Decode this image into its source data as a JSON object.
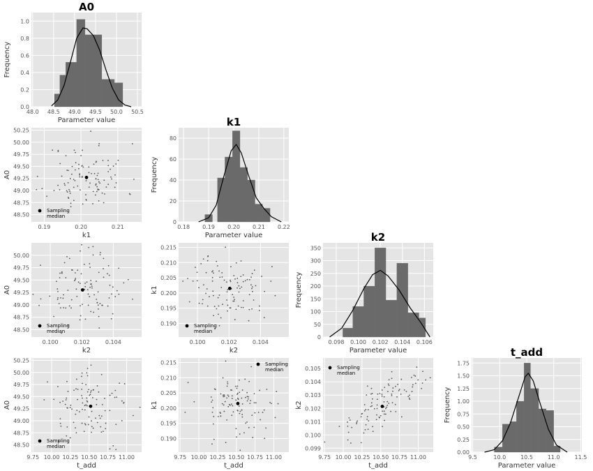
{
  "charts": {
    "A0": {
      "type": "histogram",
      "title": "A0",
      "xlabel": "Parameter value",
      "ylabel": "Frequency",
      "xlim": [
        47.97,
        50.6
      ],
      "ylim": [
        0,
        1.1
      ],
      "xticks": [
        "48.0",
        "48.5",
        "49.0",
        "49.5",
        "50.0",
        "50.5"
      ],
      "yticks": [
        "0.0",
        "0.2",
        "0.4",
        "0.6",
        "0.8",
        "1.0"
      ],
      "bins": [
        [
          48.52,
          48.65,
          0.15
        ],
        [
          48.65,
          48.79,
          0.37
        ],
        [
          48.79,
          49.05,
          0.52
        ],
        [
          49.05,
          49.25,
          1.02
        ],
        [
          49.25,
          49.45,
          0.84
        ],
        [
          49.45,
          49.65,
          0.84
        ],
        [
          49.65,
          49.95,
          0.32
        ],
        [
          49.95,
          50.15,
          0.28
        ]
      ],
      "kde": [
        [
          48.45,
          0.01
        ],
        [
          48.6,
          0.08
        ],
        [
          48.75,
          0.25
        ],
        [
          48.9,
          0.52
        ],
        [
          49.05,
          0.8
        ],
        [
          49.2,
          0.92
        ],
        [
          49.3,
          0.91
        ],
        [
          49.45,
          0.83
        ],
        [
          49.6,
          0.66
        ],
        [
          49.75,
          0.43
        ],
        [
          49.9,
          0.22
        ],
        [
          50.05,
          0.08
        ],
        [
          50.2,
          0.02
        ],
        [
          50.35,
          0.0
        ]
      ]
    },
    "k1": {
      "type": "histogram",
      "title": "k1",
      "xlabel": "Parameter value",
      "ylabel": "Frequency",
      "xlim": [
        0.178,
        0.222
      ],
      "ylim": [
        0,
        90
      ],
      "xticks": [
        "0.18",
        "0.19",
        "0.20",
        "0.21",
        "0.22"
      ],
      "yticks": [
        "0",
        "20",
        "40",
        "60",
        "80"
      ],
      "bins": [
        [
          0.1885,
          0.1915,
          7
        ],
        [
          0.1935,
          0.1965,
          42
        ],
        [
          0.1965,
          0.1995,
          62
        ],
        [
          0.1995,
          0.2025,
          87
        ],
        [
          0.2025,
          0.2055,
          52
        ],
        [
          0.2055,
          0.2085,
          40
        ],
        [
          0.2085,
          0.2115,
          17
        ],
        [
          0.2115,
          0.2145,
          13
        ]
      ],
      "kde": [
        [
          0.186,
          0.0
        ],
        [
          0.19,
          4
        ],
        [
          0.193,
          16
        ],
        [
          0.196,
          43
        ],
        [
          0.199,
          68
        ],
        [
          0.201,
          74
        ],
        [
          0.203,
          66
        ],
        [
          0.206,
          44
        ],
        [
          0.209,
          23
        ],
        [
          0.212,
          13
        ],
        [
          0.215,
          5
        ],
        [
          0.219,
          0.0
        ]
      ]
    },
    "k2": {
      "type": "histogram",
      "title": "k2",
      "xlabel": "Parameter value",
      "ylabel": "Frequency",
      "xlim": [
        0.0968,
        0.1068
      ],
      "ylim": [
        0,
        370
      ],
      "xticks": [
        "0.098",
        "0.100",
        "0.102",
        "0.104",
        "0.106"
      ],
      "yticks": [
        "0",
        "50",
        "100",
        "150",
        "200",
        "250",
        "300",
        "350"
      ],
      "bins": [
        [
          0.0986,
          0.0995,
          35
        ],
        [
          0.0995,
          0.1005,
          120
        ],
        [
          0.1005,
          0.1015,
          200
        ],
        [
          0.1015,
          0.1025,
          350
        ],
        [
          0.1025,
          0.1035,
          145
        ],
        [
          0.1035,
          0.1045,
          290
        ],
        [
          0.1045,
          0.1055,
          95
        ],
        [
          0.1055,
          0.1061,
          75
        ]
      ],
      "kde": [
        [
          0.0974,
          0.0
        ],
        [
          0.0985,
          35
        ],
        [
          0.0995,
          105
        ],
        [
          0.1005,
          190
        ],
        [
          0.1013,
          245
        ],
        [
          0.102,
          262
        ],
        [
          0.1027,
          240
        ],
        [
          0.1037,
          185
        ],
        [
          0.1047,
          115
        ],
        [
          0.1057,
          55
        ],
        [
          0.1065,
          0.0
        ]
      ]
    },
    "t_add": {
      "type": "histogram",
      "title": "t_add",
      "xlabel": "Parameter value",
      "ylabel": "Frequency",
      "xlim": [
        9.48,
        11.52
      ],
      "ylim": [
        0,
        1.85
      ],
      "xticks": [
        "9.5",
        "10.0",
        "10.5",
        "11.0",
        "11.5"
      ],
      "yticks": [
        "0.00",
        "0.25",
        "0.50",
        "0.75",
        "1.00",
        "1.25",
        "1.50",
        "1.75"
      ],
      "bins": [
        [
          9.9,
          10.05,
          0.1
        ],
        [
          10.05,
          10.19,
          0.55
        ],
        [
          10.19,
          10.31,
          0.6
        ],
        [
          10.31,
          10.45,
          1.0
        ],
        [
          10.45,
          10.57,
          1.75
        ],
        [
          10.57,
          10.72,
          1.25
        ],
        [
          10.72,
          10.86,
          0.85
        ],
        [
          10.86,
          11.0,
          0.82
        ],
        [
          11.0,
          11.12,
          0.12
        ]
      ],
      "kde": [
        [
          9.72,
          0.0
        ],
        [
          9.9,
          0.05
        ],
        [
          10.05,
          0.22
        ],
        [
          10.2,
          0.58
        ],
        [
          10.35,
          1.08
        ],
        [
          10.47,
          1.48
        ],
        [
          10.53,
          1.55
        ],
        [
          10.62,
          1.4
        ],
        [
          10.75,
          0.95
        ],
        [
          10.9,
          0.45
        ],
        [
          11.05,
          0.14
        ],
        [
          11.25,
          0.0
        ]
      ]
    },
    "k1_vs_A0": {
      "type": "scatter",
      "xlabel": "k1",
      "ylabel": "A0",
      "xlim": [
        0.1865,
        0.2165
      ],
      "ylim": [
        48.35,
        50.3
      ],
      "xticks": [
        "0.19",
        "0.20",
        "0.21"
      ],
      "yticks": [
        "48.50",
        "48.75",
        "49.00",
        "49.25",
        "49.50",
        "49.75",
        "50.00",
        "50.25"
      ],
      "median": [
        0.2015,
        49.27
      ],
      "median_label": [
        "Sampling",
        "median"
      ],
      "legend_pos": "bottom-left",
      "seed": 11,
      "corr": 0.0
    },
    "k2_vs_A0": {
      "type": "scatter",
      "xlabel": "k2",
      "ylabel": "A0",
      "xlim": [
        0.0988,
        0.1058
      ],
      "ylim": [
        48.35,
        50.25
      ],
      "xticks": [
        "0.100",
        "0.102",
        "0.104"
      ],
      "yticks": [
        "48.50",
        "48.75",
        "49.00",
        "49.25",
        "49.50",
        "49.75",
        "50.00"
      ],
      "median": [
        0.10205,
        49.3
      ],
      "median_label": [
        "Sampling",
        "median"
      ],
      "legend_pos": "bottom-left",
      "seed": 23,
      "corr": 0.0
    },
    "k2_vs_k1": {
      "type": "scatter",
      "xlabel": "k2",
      "ylabel": "k1",
      "xlim": [
        0.0988,
        0.1058
      ],
      "ylim": [
        0.1855,
        0.2165
      ],
      "xticks": [
        "0.100",
        "0.102",
        "0.104"
      ],
      "yticks": [
        "0.190",
        "0.195",
        "0.200",
        "0.205",
        "0.210",
        "0.215"
      ],
      "median": [
        0.10205,
        0.2015
      ],
      "median_label": [
        "Sampling",
        "median"
      ],
      "legend_pos": "bottom-left",
      "seed": 37,
      "corr": 0.0
    },
    "t_add_vs_A0": {
      "type": "scatter",
      "xlabel": "t_add",
      "ylabel": "A0",
      "xlim": [
        9.73,
        11.2
      ],
      "ylim": [
        48.35,
        50.3
      ],
      "xticks": [
        "9.75",
        "10.00",
        "10.25",
        "10.50",
        "10.75",
        "11.00"
      ],
      "yticks": [
        "48.50",
        "48.75",
        "49.00",
        "49.25",
        "49.50",
        "49.75",
        "50.00",
        "50.25"
      ],
      "median": [
        10.52,
        49.3
      ],
      "median_label": [
        "Sampling",
        "median"
      ],
      "legend_pos": "bottom-left",
      "seed": 41,
      "corr": 0.0
    },
    "t_add_vs_k1": {
      "type": "scatter",
      "xlabel": "t_add",
      "ylabel": "k1",
      "xlim": [
        9.73,
        11.2
      ],
      "ylim": [
        0.1855,
        0.2165
      ],
      "xticks": [
        "9.75",
        "10.00",
        "10.25",
        "10.50",
        "10.75",
        "11.00"
      ],
      "yticks": [
        "0.190",
        "0.195",
        "0.200",
        "0.205",
        "0.210",
        "0.215"
      ],
      "median": [
        10.52,
        0.2015
      ],
      "median_label": [
        "Sampling",
        "median"
      ],
      "legend_pos": "top-right",
      "seed": 53,
      "corr": 0.0
    },
    "t_add_vs_k2": {
      "type": "scatter",
      "xlabel": "t_add",
      "ylabel": "k2",
      "xlim": [
        9.73,
        11.2
      ],
      "ylim": [
        0.0987,
        0.1058
      ],
      "xticks": [
        "9.75",
        "10.00",
        "10.25",
        "10.50",
        "10.75",
        "11.00"
      ],
      "yticks": [
        "0.099",
        "0.100",
        "0.101",
        "0.102",
        "0.103",
        "0.104",
        "0.105"
      ],
      "median": [
        10.52,
        0.10215
      ],
      "median_label": [
        "Sampling",
        "median"
      ],
      "legend_pos": "top-left",
      "seed": 67,
      "corr": 0.75
    }
  },
  "style": {
    "panel_bg": "#e5e5e5",
    "grid": "#ffffff",
    "bar": "#6a6a6a",
    "kde": "#000000",
    "point": "#555555",
    "median": "#000000"
  }
}
